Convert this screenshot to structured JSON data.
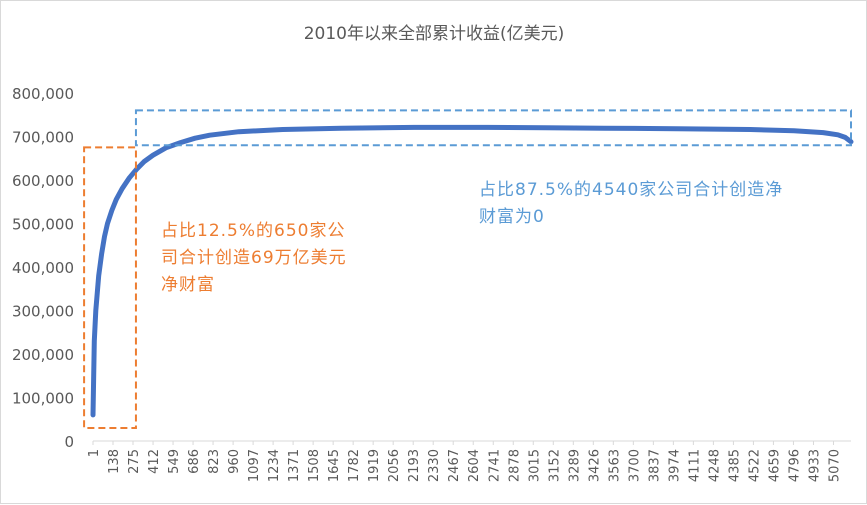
{
  "colors": {
    "line": "#4472C4",
    "left_box": "#ED7D31",
    "right_box": "#5B9BD5",
    "axis_text": "#595959",
    "left_text": "#ED7D31",
    "right_text": "#5B9BD5"
  },
  "chart_data": {
    "type": "line",
    "title": "2010年以来全部累计收益(亿美元)",
    "xlabel": "",
    "ylabel": "",
    "ylim": [
      0,
      800000
    ],
    "yticks": [
      "0",
      "100,000",
      "200,000",
      "300,000",
      "400,000",
      "500,000",
      "600,000",
      "700,000",
      "800,000"
    ],
    "xlim": [
      1,
      5190
    ],
    "xticks": [
      "1",
      "138",
      "275",
      "412",
      "549",
      "686",
      "823",
      "960",
      "1097",
      "1234",
      "1371",
      "1508",
      "1645",
      "1782",
      "1919",
      "2056",
      "2193",
      "2330",
      "2467",
      "2604",
      "2741",
      "2878",
      "3015",
      "3152",
      "3289",
      "3426",
      "3563",
      "3700",
      "3837",
      "3974",
      "4111",
      "4248",
      "4385",
      "4522",
      "4659",
      "4796",
      "4933",
      "5070"
    ],
    "grid": false,
    "legend": "none",
    "series": [
      {
        "x": [
          1,
          10,
          20,
          40,
          60,
          80,
          100,
          130,
          160,
          200,
          250,
          300,
          350,
          412,
          500,
          600,
          700,
          800,
          1000,
          1300,
          1700,
          2200,
          2700,
          3100,
          3500,
          4000,
          4500,
          4800,
          5000,
          5100,
          5150,
          5190
        ],
        "values": [
          60000,
          230000,
          300000,
          380000,
          430000,
          470000,
          500000,
          530000,
          555000,
          580000,
          605000,
          625000,
          642000,
          657000,
          674000,
          686000,
          696000,
          703000,
          711000,
          716000,
          719000,
          721000,
          721000,
          720000,
          719000,
          718000,
          716000,
          713000,
          709000,
          704000,
          698000,
          688000
        ]
      }
    ],
    "annotations": {
      "left": {
        "text": "占比12.5%的650家公司合计创造69万亿美元净财富",
        "x_range": [
          -60,
          295
        ],
        "y_range": [
          30000,
          675000
        ]
      },
      "right": {
        "text": "占比87.5%的4540家公司合计创造净财富为0",
        "x_range": [
          295,
          5190
        ],
        "y_range": [
          680000,
          760000
        ]
      }
    }
  }
}
